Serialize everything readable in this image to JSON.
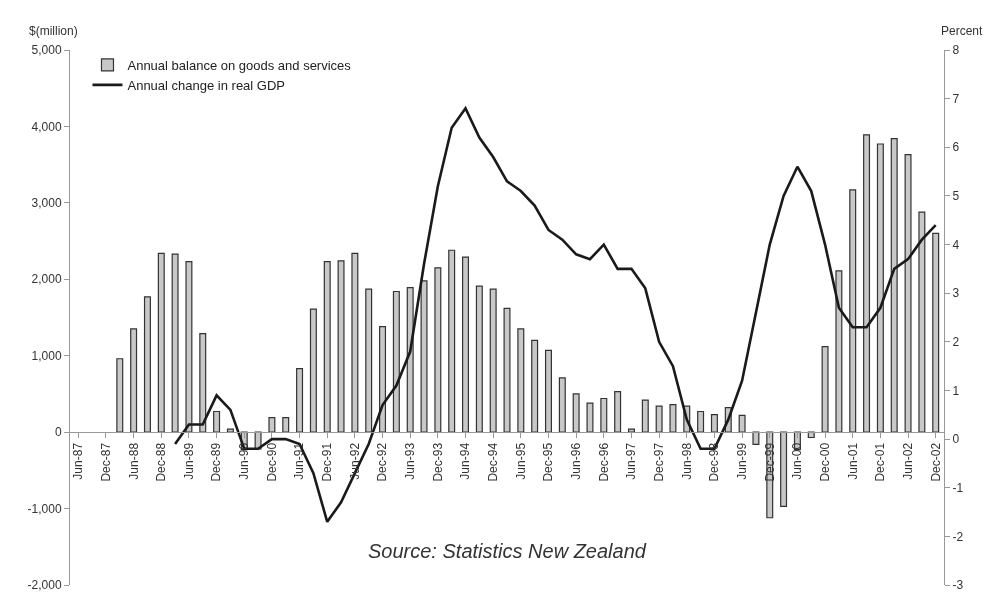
{
  "chart_data": {
    "type": "bar",
    "ylabel": "$(million)",
    "y2label": "Percent",
    "annotations": [
      "Source: Statistics New Zealand"
    ],
    "categories": [
      "Jun-87",
      null,
      "Dec-87",
      null,
      "Jun-88",
      null,
      "Dec-88",
      null,
      "Jun-89",
      null,
      "Dec-89",
      null,
      "Jun-90",
      null,
      "Dec-90",
      null,
      "Jun-91",
      null,
      "Dec-91",
      null,
      "Jun-92",
      null,
      "Dec-92",
      null,
      "Jun-93",
      null,
      "Dec-93",
      null,
      "Jun-94",
      null,
      "Dec-94",
      null,
      "Jun-95",
      null,
      "Dec-95",
      null,
      "Jun-96",
      null,
      "Dec-96",
      null,
      "Jun-97",
      null,
      "Dec-97",
      null,
      "Jun-98",
      null,
      "Dec-98",
      null,
      "Jun-99",
      null,
      "Dec-99",
      null,
      "Jun-00",
      null,
      "Dec-00",
      null,
      "Jun-01",
      null,
      "Dec-01",
      null,
      "Jun-02",
      null,
      "Dec-02"
    ],
    "series": [
      {
        "name": "Annual balance on goods and services",
        "color": "#c8c8c8",
        "values": [
          null,
          null,
          null,
          960,
          1350,
          1770,
          2340,
          2330,
          2230,
          1290,
          270,
          40,
          -230,
          -220,
          190,
          190,
          830,
          1610,
          2230,
          2240,
          2340,
          1870,
          1380,
          1840,
          1890,
          1980,
          2150,
          2380,
          2290,
          1910,
          1870,
          1620,
          1350,
          1200,
          1070,
          710,
          500,
          380,
          440,
          530,
          40,
          420,
          340,
          360,
          340,
          270,
          230,
          320,
          220,
          -160,
          -1120,
          -970,
          -230,
          -70,
          1120,
          2110,
          3170,
          3890,
          3770,
          3840,
          3630,
          2880,
          2600
        ]
      },
      {
        "name": "Annual change in real GDP",
        "type": "line",
        "axis": "y2",
        "color": "#1a1a1a",
        "values": [
          null,
          null,
          null,
          null,
          null,
          null,
          null,
          -0.1,
          0.3,
          0.3,
          0.9,
          0.6,
          -0.2,
          -0.2,
          0,
          0,
          -0.1,
          -0.7,
          -1.7,
          -1.3,
          -0.7,
          -0.1,
          0.7,
          1.1,
          1.8,
          3.6,
          5.2,
          6.4,
          6.8,
          6.2,
          5.8,
          5.3,
          5.1,
          4.8,
          4.3,
          4.1,
          3.8,
          3.7,
          4.0,
          3.5,
          3.5,
          3.1,
          2.0,
          1.5,
          0.4,
          -0.2,
          -0.2,
          0.4,
          1.2,
          2.6,
          4.0,
          5.0,
          5.6,
          5.1,
          4.0,
          2.7,
          2.3,
          2.3,
          2.7,
          3.5,
          3.7,
          4.1,
          4.4
        ]
      }
    ],
    "ylim": [
      -2000,
      5000
    ],
    "yticks": [
      {
        "value": -2000,
        "label": "-2,000"
      },
      {
        "value": -1000,
        "label": "-1,000"
      },
      0,
      {
        "value": 1000,
        "label": "1,000"
      },
      {
        "value": 2000,
        "label": "2,000"
      },
      {
        "value": 3000,
        "label": "3,000"
      },
      {
        "value": 4000,
        "label": "4,000"
      },
      {
        "value": 5000,
        "label": "5,000"
      }
    ],
    "y2lim": [
      -3,
      8
    ],
    "y2ticks": [
      -3,
      -2,
      -1,
      0,
      1,
      2,
      3,
      4,
      5,
      6,
      7,
      8
    ],
    "legend": "top left",
    "marker": "none",
    "line_style": "solid"
  }
}
